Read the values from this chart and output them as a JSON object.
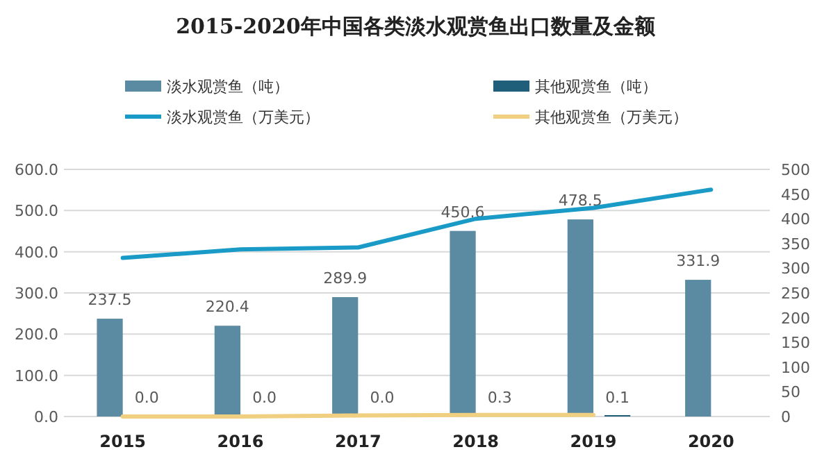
{
  "chart_data": {
    "type": "bar",
    "title": "2015-2020年中国各类淡水观赏鱼出口数量及金额",
    "categories": [
      "2015",
      "2016",
      "2017",
      "2018",
      "2019",
      "2020"
    ],
    "series": [
      {
        "name": "淡水观赏鱼（吨）",
        "color": "#5b8ba3",
        "values": [
          237.5,
          220.4,
          289.9,
          450.6,
          478.5,
          331.9
        ],
        "value_labels": [
          "237.5",
          "220.4",
          "289.9",
          "450.6",
          "478.5",
          "331.9"
        ]
      },
      {
        "name": "其他观赏鱼（吨）",
        "color": "#1f5f7a",
        "values": [
          0,
          0,
          0,
          0.3,
          0.1,
          null
        ],
        "value_labels": [
          "0.0",
          "0.0",
          "0.0",
          "0.3",
          "0.1",
          null
        ]
      },
      {
        "name": "淡水观赏鱼（万美元）",
        "type": "line",
        "axis": "y2",
        "color": "#1a9bc7",
        "values": [
          321,
          338,
          342,
          400,
          422,
          459
        ]
      },
      {
        "name": "其他观赏鱼（万美元）",
        "type": "line",
        "axis": "y2",
        "color": "#f0d080",
        "values": [
          0,
          0,
          2,
          3,
          3,
          null
        ]
      }
    ],
    "ylim": [
      0,
      600
    ],
    "yticks": [
      {
        "value": 0,
        "label": "0.0"
      },
      {
        "value": 100,
        "label": "100.0"
      },
      {
        "value": 200,
        "label": "200.0"
      },
      {
        "value": 300,
        "label": "300.0"
      },
      {
        "value": 400,
        "label": "400.0"
      },
      {
        "value": 500,
        "label": "500.0"
      },
      {
        "value": 600,
        "label": "600.0"
      }
    ],
    "y2lim": [
      0,
      500
    ],
    "y2ticks": [
      0,
      50,
      100,
      150,
      200,
      250,
      300,
      350,
      400,
      450,
      500
    ],
    "grid": "y",
    "legend": "top"
  }
}
